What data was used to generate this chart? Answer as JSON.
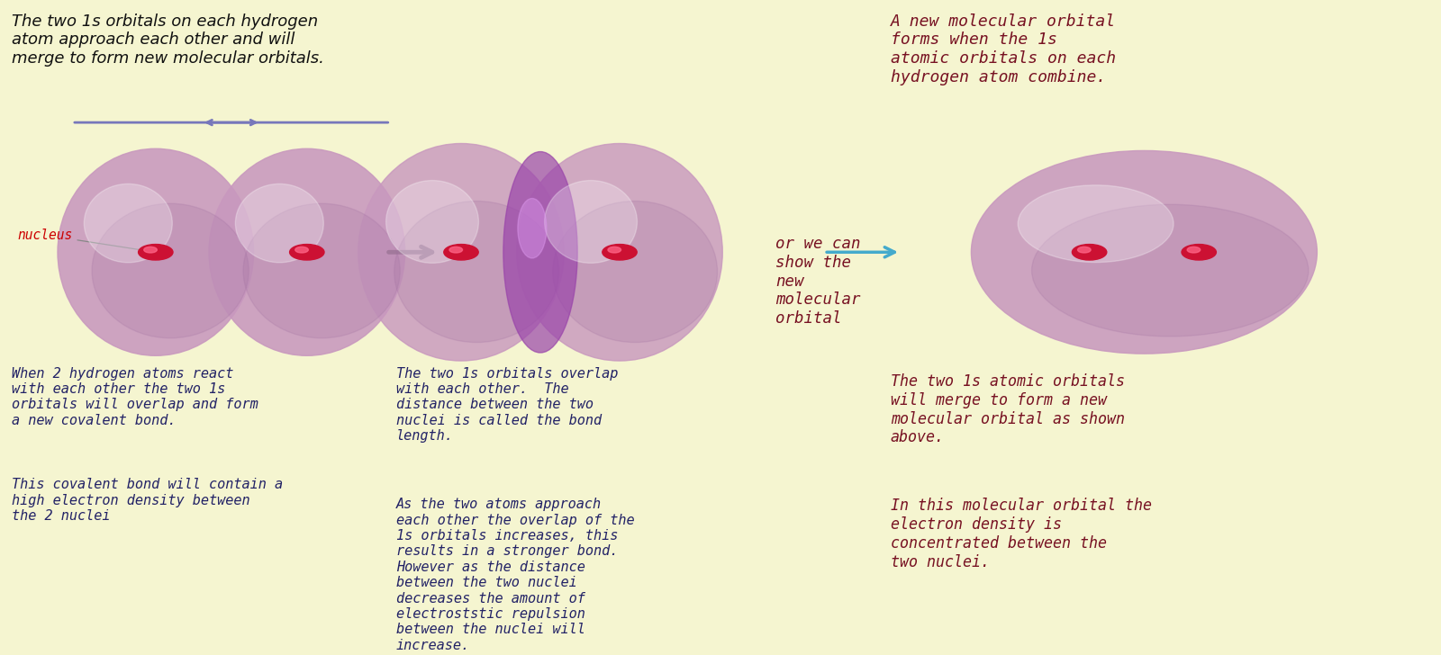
{
  "bg_color": "#f5f5d0",
  "title_text": "The two 1s orbitals on each hydrogen\natom approach each other and will\nmerge to form new molecular orbitals.",
  "title_color": "#111111",
  "nucleus_label": "nucleus",
  "nucleus_label_color": "#cc0000",
  "nucleus_color": "#cc1133",
  "orbital_color_base": "#c898be",
  "orbital_color_dark": "#a070a0",
  "orbital_color_overlap": "#9944aa",
  "arrow1_color": "#7777bb",
  "arrow3_color": "#44aacc",
  "text_blue": "#222266",
  "text_dark_red": "#771122",
  "text_bottom_left_1": "When 2 hydrogen atoms react\nwith each other the two 1s\norbitals will overlap and form\na new covalent bond.",
  "text_bottom_left_2": "This covalent bond will contain a\nhigh electron density between\nthe 2 nuclei",
  "text_overlap_top": "The two 1s orbitals overlap\nwith each other.  The\ndistance between the two\nnuclei is called the bond\nlength.",
  "text_overlap_bot": "As the two atoms approach\neach other the overlap of the\n1s orbitals increases, this\nresults in a stronger bond.\nHowever as the distance\nbetween the two nuclei\ndecreases the amount of\nelectroststic repulsion\nbetween the nuclei will\nincrease.",
  "text_top_right": "A new molecular orbital\nforms when the 1s\natomic orbitals on each\nhydrogen atom combine.",
  "text_mid_right_label": "or we can\nshow the\nnew\nmolecular\norbital",
  "text_bottom_right_1": "The two 1s atomic orbitals\nwill merge to form a new\nmolecular orbital as shown\nabove.",
  "text_bottom_right_2": "In this molecular orbital the\nelectron density is\nconcentrated between the\ntwo nuclei."
}
